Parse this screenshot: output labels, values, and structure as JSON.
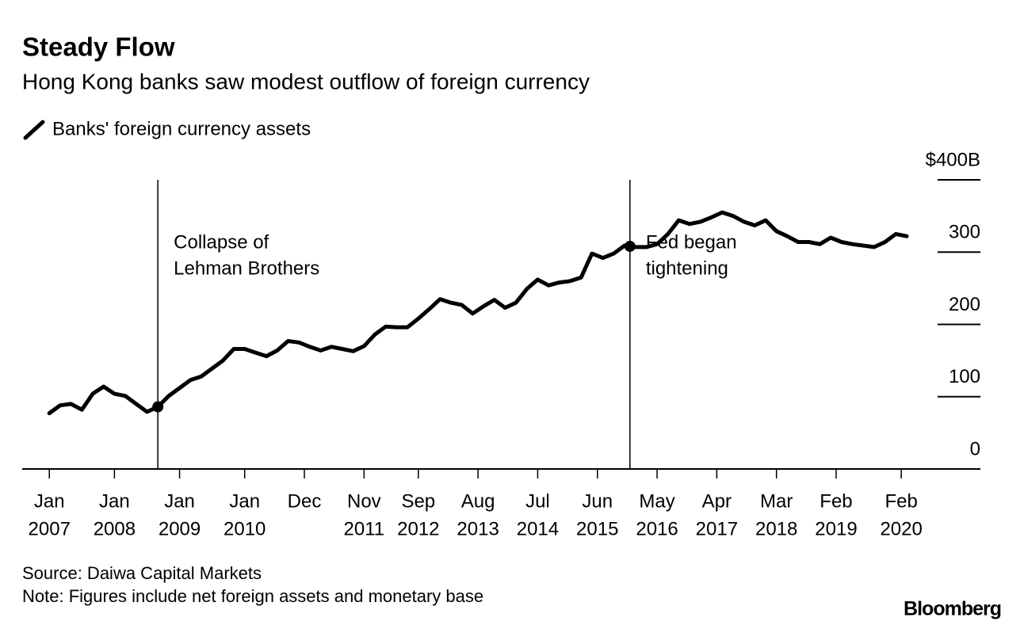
{
  "chart_data": {
    "type": "line",
    "title": "Steady Flow",
    "subtitle": "Hong Kong banks saw modest outflow of foreign currency",
    "source": "Source: Daiwa Capital Markets",
    "note": "Note: Figures include net foreign assets and monetary base",
    "credit": "Bloomberg",
    "x": [
      "2007-01",
      "2007-03",
      "2007-05",
      "2007-07",
      "2007-09",
      "2007-11",
      "2008-01",
      "2008-03",
      "2008-05",
      "2008-07",
      "2008-09",
      "2008-11",
      "2009-01",
      "2009-03",
      "2009-05",
      "2009-07",
      "2009-09",
      "2009-11",
      "2010-01",
      "2010-03",
      "2010-05",
      "2010-07",
      "2010-09",
      "2010-11",
      "2011-01",
      "2011-03",
      "2011-05",
      "2011-07",
      "2011-09",
      "2011-11",
      "2012-01",
      "2012-03",
      "2012-05",
      "2012-07",
      "2012-09",
      "2012-11",
      "2013-01",
      "2013-03",
      "2013-05",
      "2013-07",
      "2013-09",
      "2013-11",
      "2014-01",
      "2014-03",
      "2014-05",
      "2014-07",
      "2014-09",
      "2014-11",
      "2015-01",
      "2015-03",
      "2015-05",
      "2015-07",
      "2015-09",
      "2015-11",
      "2016-01",
      "2016-03",
      "2016-05",
      "2016-07",
      "2016-09",
      "2016-11",
      "2017-01",
      "2017-03",
      "2017-05",
      "2017-07",
      "2017-09",
      "2017-11",
      "2018-01",
      "2018-03",
      "2018-05",
      "2018-07",
      "2018-09",
      "2018-11",
      "2019-01",
      "2019-03",
      "2019-05",
      "2019-07",
      "2019-09",
      "2019-11",
      "2020-01",
      "2020-03"
    ],
    "series": [
      {
        "name": "Banks' foreign currency assets",
        "color": "#000000",
        "values": [
          77,
          88,
          90,
          82,
          104,
          114,
          104,
          101,
          90,
          79,
          86,
          101,
          112,
          123,
          128,
          139,
          150,
          166,
          166,
          161,
          156,
          164,
          177,
          175,
          169,
          164,
          169,
          166,
          163,
          170,
          186,
          197,
          196,
          196,
          208,
          221,
          235,
          230,
          227,
          215,
          225,
          234,
          223,
          230,
          249,
          262,
          254,
          258,
          260,
          265,
          298,
          292,
          298,
          309,
          307,
          307,
          311,
          325,
          344,
          339,
          342,
          348,
          355,
          350,
          342,
          337,
          344,
          329,
          322,
          314,
          314,
          311,
          320,
          314,
          311,
          309,
          307,
          314,
          325,
          322
        ]
      }
    ],
    "xlim": [
      "2006-08",
      "2021-04"
    ],
    "xticks": [
      {
        "value": "2007-01",
        "label": [
          "Jan",
          "2007"
        ]
      },
      {
        "value": "2008-01",
        "label": [
          "Jan",
          "2008"
        ]
      },
      {
        "value": "2009-01",
        "label": [
          "Jan",
          "2009"
        ]
      },
      {
        "value": "2010-01",
        "label": [
          "Jan",
          "2010"
        ]
      },
      {
        "value": "2010-12",
        "label": [
          "Dec"
        ]
      },
      {
        "value": "2011-11",
        "label": [
          "Nov",
          "2011"
        ]
      },
      {
        "value": "2012-09",
        "label": [
          "Sep",
          "2012"
        ]
      },
      {
        "value": "2013-08",
        "label": [
          "Aug",
          "2013"
        ]
      },
      {
        "value": "2014-07",
        "label": [
          "Jul",
          "2014"
        ]
      },
      {
        "value": "2015-06",
        "label": [
          "Jun",
          "2015"
        ]
      },
      {
        "value": "2016-05",
        "label": [
          "May",
          "2016"
        ]
      },
      {
        "value": "2017-04",
        "label": [
          "Apr",
          "2017"
        ]
      },
      {
        "value": "2018-03",
        "label": [
          "Mar",
          "2018"
        ]
      },
      {
        "value": "2019-02",
        "label": [
          "Feb",
          "2019"
        ]
      },
      {
        "value": "2020-02",
        "label": [
          "Feb",
          "2020"
        ]
      }
    ],
    "ylim": [
      0,
      400
    ],
    "yticks": [
      0,
      100,
      200,
      300,
      {
        "value": 400,
        "label": "$400B"
      }
    ],
    "annotations": [
      {
        "x": "2008-09",
        "text": [
          "Collapse of",
          "Lehman Brothers"
        ]
      },
      {
        "x": "2015-12",
        "text": [
          "Fed began",
          "tightening"
        ]
      }
    ]
  }
}
